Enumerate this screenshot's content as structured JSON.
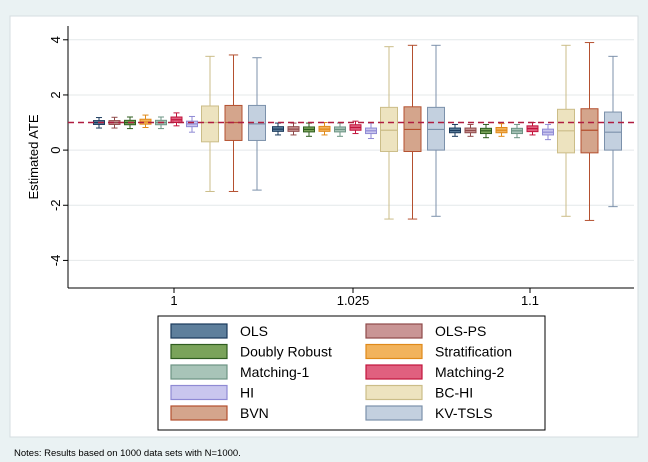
{
  "chart_data": {
    "type": "boxplot",
    "ylabel": "Estimated ATE",
    "ylim": [
      -5,
      4.5
    ],
    "yticks": [
      -4,
      -2,
      0,
      2,
      4
    ],
    "reference_line": 1,
    "categories": [
      "1",
      "1.025",
      "1.1"
    ],
    "legend_position": "bottom",
    "note": "Notes: Results based on 1000 data sets with N=1000.",
    "colors": {
      "OLS": {
        "fill": "#5e7f9c",
        "stroke": "#1a3a5c"
      },
      "OLS-PS": {
        "fill": "#c99595",
        "stroke": "#8f4a4a"
      },
      "Doubly Robust": {
        "fill": "#7aa35a",
        "stroke": "#2f5d1f"
      },
      "Stratification": {
        "fill": "#f2b35c",
        "stroke": "#e08a1a"
      },
      "Matching-1": {
        "fill": "#a8c4b8",
        "stroke": "#6d9484"
      },
      "Matching-2": {
        "fill": "#e0607f",
        "stroke": "#c2143c"
      },
      "HI": {
        "fill": "#c9c6ee",
        "stroke": "#8f8ad4"
      },
      "BC-HI": {
        "fill": "#ede3bf",
        "stroke": "#cbbd88"
      },
      "BVN": {
        "fill": "#d4a58c",
        "stroke": "#b4502f"
      },
      "KV-TSLS": {
        "fill": "#c3d0df",
        "stroke": "#7c91ab"
      }
    },
    "legend_order": [
      "OLS",
      "OLS-PS",
      "Doubly Robust",
      "Stratification",
      "Matching-1",
      "Matching-2",
      "HI",
      "BC-HI",
      "BVN",
      "KV-TSLS"
    ],
    "box_order": [
      "OLS",
      "OLS-PS",
      "Doubly Robust",
      "Stratification",
      "Matching-1",
      "Matching-2",
      "HI",
      "BC-HI",
      "BVN",
      "KV-TSLS"
    ],
    "groups": [
      {
        "category": "1",
        "boxes": {
          "OLS": [
            0.8,
            0.93,
            1.0,
            1.07,
            1.18
          ],
          "OLS-PS": [
            0.8,
            0.93,
            1.0,
            1.07,
            1.19
          ],
          "Doubly Robust": [
            0.78,
            0.92,
            1.0,
            1.08,
            1.2
          ],
          "Stratification": [
            0.82,
            0.94,
            1.02,
            1.12,
            1.27
          ],
          "Matching-1": [
            0.78,
            0.92,
            1.0,
            1.08,
            1.2
          ],
          "Matching-2": [
            0.88,
            1.0,
            1.1,
            1.2,
            1.35
          ],
          "HI": [
            0.65,
            0.85,
            0.95,
            1.05,
            1.22
          ],
          "BC-HI": [
            -1.5,
            0.3,
            1.0,
            1.6,
            3.4
          ],
          "BVN": [
            -1.5,
            0.35,
            1.0,
            1.62,
            3.45
          ],
          "KV-TSLS": [
            -1.45,
            0.35,
            0.95,
            1.62,
            3.35
          ]
        }
      },
      {
        "category": "1.025",
        "boxes": {
          "OLS": [
            0.55,
            0.68,
            0.76,
            0.85,
            0.98
          ],
          "OLS-PS": [
            0.55,
            0.68,
            0.76,
            0.85,
            0.98
          ],
          "Doubly Robust": [
            0.5,
            0.66,
            0.75,
            0.84,
            0.98
          ],
          "Stratification": [
            0.55,
            0.68,
            0.76,
            0.86,
            1.0
          ],
          "Matching-1": [
            0.5,
            0.66,
            0.75,
            0.84,
            0.98
          ],
          "Matching-2": [
            0.6,
            0.72,
            0.82,
            0.92,
            1.05
          ],
          "HI": [
            0.42,
            0.6,
            0.7,
            0.8,
            0.98
          ],
          "BC-HI": [
            -2.5,
            -0.05,
            0.72,
            1.55,
            3.75
          ],
          "BVN": [
            -2.5,
            -0.05,
            0.75,
            1.57,
            3.8
          ],
          "KV-TSLS": [
            -2.4,
            0.0,
            0.75,
            1.55,
            3.8
          ]
        }
      },
      {
        "category": "1.1",
        "boxes": {
          "OLS": [
            0.5,
            0.63,
            0.71,
            0.8,
            0.93
          ],
          "OLS-PS": [
            0.5,
            0.63,
            0.71,
            0.8,
            0.93
          ],
          "Doubly Robust": [
            0.45,
            0.6,
            0.7,
            0.79,
            0.93
          ],
          "Stratification": [
            0.5,
            0.63,
            0.72,
            0.82,
            0.96
          ],
          "Matching-1": [
            0.45,
            0.6,
            0.7,
            0.79,
            0.93
          ],
          "Matching-2": [
            0.55,
            0.67,
            0.78,
            0.88,
            1.0
          ],
          "HI": [
            0.38,
            0.55,
            0.65,
            0.76,
            0.93
          ],
          "BC-HI": [
            -2.4,
            -0.1,
            0.7,
            1.48,
            3.8
          ],
          "BVN": [
            -2.55,
            -0.1,
            0.72,
            1.5,
            3.9
          ],
          "KV-TSLS": [
            -2.05,
            0.0,
            0.65,
            1.38,
            3.4
          ]
        }
      }
    ]
  }
}
